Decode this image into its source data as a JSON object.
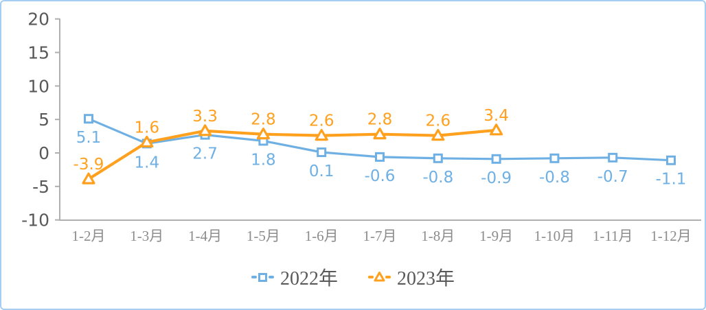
{
  "frame": {
    "border_color": "#a5ccf1",
    "background": "#ffffff"
  },
  "chart_data": {
    "type": "line",
    "title": "",
    "xlabel": "",
    "ylabel": "",
    "categories": [
      "1-2月",
      "1-3月",
      "1-4月",
      "1-5月",
      "1-6月",
      "1-7月",
      "1-8月",
      "1-9月",
      "1-10月",
      "1-11月",
      "1-12月"
    ],
    "series": [
      {
        "name": "2022年",
        "color": "#6fb0e4",
        "marker": "square",
        "label_side": "below",
        "values": [
          5.1,
          1.4,
          2.7,
          1.8,
          0.1,
          -0.6,
          -0.8,
          -0.9,
          -0.8,
          -0.7,
          -1.1
        ]
      },
      {
        "name": "2023年",
        "color": "#ffa01e",
        "marker": "triangle",
        "label_side": "above",
        "values": [
          -3.9,
          1.6,
          3.3,
          2.8,
          2.6,
          2.8,
          2.6,
          3.4
        ]
      }
    ],
    "ylim": [
      -10,
      20
    ],
    "yticks": [
      20,
      15,
      10,
      5,
      0,
      -5,
      -10
    ],
    "grid": false,
    "legend_position": "bottom",
    "axis_color": "#afafaf",
    "ytick_color": "#595959",
    "xtick_color": "#8c8c8c",
    "legend_text_color": "#595959"
  }
}
